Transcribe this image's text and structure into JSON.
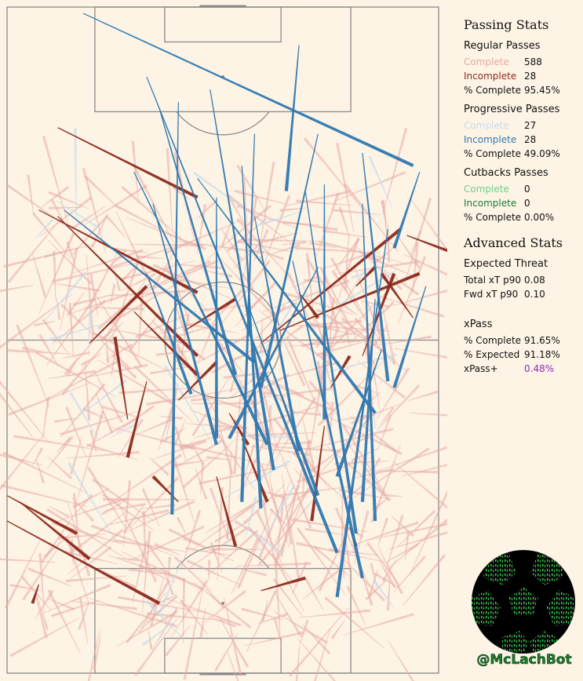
{
  "colors": {
    "background": "#fdf4e5",
    "pitch_line": "#8a8a8a",
    "regular_complete": "#e8a9a6",
    "regular_incomplete": "#8b2a1e",
    "progressive_complete": "#c6dcec",
    "progressive_incomplete": "#2f78b0",
    "cutback_complete": "#6bd08a",
    "cutback_incomplete": "#1a7a3e",
    "xpass_plus": "#8a2db8",
    "logo_green": "#1e7a2e"
  },
  "stats": {
    "passing_title": "Passing Stats",
    "regular": {
      "title": "Regular Passes",
      "complete_label": "Complete",
      "complete_value": "588",
      "incomplete_label": "Incomplete",
      "incomplete_value": "28",
      "pct_label": "% Complete",
      "pct_value": "95.45%"
    },
    "progressive": {
      "title": "Progressive Passes",
      "complete_label": "Complete",
      "complete_value": "27",
      "incomplete_label": "Incomplete",
      "incomplete_value": "28",
      "pct_label": "% Complete",
      "pct_value": "49.09%"
    },
    "cutbacks": {
      "title": "Cutbacks Passes",
      "complete_label": "Complete",
      "complete_value": "0",
      "incomplete_label": "Incomplete",
      "incomplete_value": "0",
      "pct_label": "% Complete",
      "pct_value": "0.00%"
    },
    "advanced_title": "Advanced Stats",
    "xt": {
      "title": "Expected Threat",
      "total_label": "Total xT p90",
      "total_value": "0.08",
      "fwd_label": "Fwd xT p90",
      "fwd_value": "0.10"
    },
    "xpass": {
      "title": "xPass",
      "complete_label": "% Complete",
      "complete_value": "91.65%",
      "expected_label": "% Expected",
      "expected_value": "91.18%",
      "plus_label": "xPass+",
      "plus_value": "0.48%"
    }
  },
  "logo": {
    "handle": "@McLachBot"
  },
  "chart_data": {
    "type": "scatter",
    "title": "",
    "xlabel": "",
    "ylabel": "",
    "pitch": {
      "length": 105,
      "width": 68,
      "orientation": "vertical",
      "attacking": "up"
    },
    "series": [
      {
        "name": "Regular Passes Complete",
        "count": 588,
        "style": "faint",
        "passes": []
      },
      {
        "name": "Regular Passes Incomplete",
        "count": 28,
        "passes": [
          [
            8,
            19,
            30,
            30
          ],
          [
            8,
            33,
            30,
            55
          ],
          [
            13,
            53,
            22,
            44
          ],
          [
            28,
            51,
            36,
            46
          ],
          [
            5,
            32,
            30,
            45
          ],
          [
            27,
            62,
            33,
            56
          ],
          [
            40,
            53,
            62,
            35
          ],
          [
            43,
            51,
            65,
            42
          ],
          [
            63,
            36,
            71,
            39
          ],
          [
            64,
            49,
            59,
            42
          ],
          [
            0,
            81,
            24,
            94
          ],
          [
            50,
            66,
            48,
            81
          ],
          [
            56,
            55,
            61,
            42
          ],
          [
            19,
            65,
            17,
            52
          ],
          [
            51,
            60,
            54,
            55
          ],
          [
            27,
            78,
            23,
            74
          ],
          [
            0,
            77,
            11,
            83
          ],
          [
            2,
            78,
            13,
            87
          ],
          [
            22,
            59,
            19,
            71
          ],
          [
            5,
            91,
            4,
            94
          ],
          [
            54,
            82,
            55,
            85
          ],
          [
            40,
            92,
            47,
            90
          ],
          [
            37,
            68,
            41,
            78
          ],
          [
            33,
            74,
            36,
            85
          ],
          [
            46,
            45,
            49,
            49
          ],
          [
            20,
            48,
            30,
            58
          ],
          [
            55,
            44,
            58,
            41
          ],
          [
            35,
            64,
            38,
            69
          ]
        ]
      },
      {
        "name": "Progressive Passes Complete",
        "count": 27,
        "style": "faint",
        "passes": []
      },
      {
        "name": "Progressive Passes Incomplete",
        "count": 28,
        "passes": [
          [
            12,
            1,
            64,
            25
          ],
          [
            22,
            11,
            52,
            86
          ],
          [
            24,
            16,
            36,
            58
          ],
          [
            30,
            27,
            58,
            64
          ],
          [
            46,
            6,
            44,
            29
          ],
          [
            27,
            15,
            26,
            80
          ],
          [
            32,
            13,
            42,
            73
          ],
          [
            39,
            20,
            37,
            78
          ],
          [
            49,
            20,
            40,
            60
          ],
          [
            50,
            28,
            50,
            65
          ],
          [
            47,
            29,
            55,
            83
          ],
          [
            45,
            40,
            56,
            90
          ],
          [
            56,
            31,
            58,
            81
          ],
          [
            59,
            54,
            52,
            74
          ],
          [
            65,
            26,
            61,
            38
          ],
          [
            23,
            31,
            33,
            69
          ],
          [
            33,
            30,
            33,
            68
          ],
          [
            39,
            33,
            46,
            70
          ],
          [
            38,
            47,
            49,
            77
          ],
          [
            66,
            44,
            61,
            60
          ],
          [
            56,
            23,
            60,
            59
          ],
          [
            49,
            41,
            35,
            68
          ],
          [
            60,
            35,
            52,
            93
          ],
          [
            9,
            32,
            39,
            56
          ],
          [
            22,
            42,
            29,
            61
          ],
          [
            20,
            26,
            41,
            69
          ],
          [
            58,
            46,
            56,
            78
          ],
          [
            37,
            25,
            40,
            79
          ]
        ]
      },
      {
        "name": "Cutbacks Passes Complete",
        "count": 0,
        "passes": []
      },
      {
        "name": "Cutbacks Passes Incomplete",
        "count": 0,
        "passes": []
      }
    ]
  }
}
